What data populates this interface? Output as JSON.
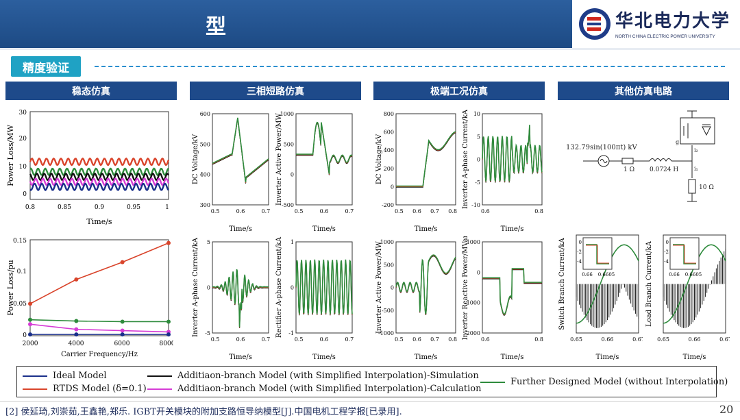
{
  "header": {
    "title": "型",
    "uni_name": "华北电力大学",
    "uni_en": "NORTH CHINA ELECTRIC POWER UNIVERSITY"
  },
  "section": {
    "tag": "精度验证"
  },
  "categories": [
    "稳态仿真",
    "三相短路仿真",
    "极端工况仿真",
    "其他仿真电路"
  ],
  "plots": {
    "ss_top": {
      "ylabel": "Power Loss/MW",
      "xlabel": "Time/s",
      "yticks": [
        "0",
        "10",
        "20",
        "30"
      ],
      "xticks": [
        "0.8",
        "0.85",
        "0.9",
        "0.95",
        "1"
      ]
    },
    "ss_bot": {
      "ylabel": "Power Loss/pu",
      "xlabel": "Carrier Frequency/Hz",
      "yticks": [
        "0",
        "0.05",
        "0.1",
        "0.15"
      ],
      "xticks": [
        "2000",
        "4000",
        "6000",
        "8000"
      ]
    },
    "sc_dcv": {
      "ylabel": "DC Voltage/kV",
      "xlabel": "Time/s",
      "yticks": [
        "300",
        "400",
        "500",
        "600"
      ],
      "xticks": [
        "0.5",
        "0.6",
        "0.7"
      ]
    },
    "sc_p": {
      "ylabel": "Inverter Active Power/MW",
      "xlabel": "Time/s",
      "yticks": [
        "-500",
        "0",
        "500",
        "1000"
      ],
      "xticks": [
        "0.5",
        "0.6",
        "0.7"
      ]
    },
    "sc_ia": {
      "ylabel": "Inverter A-phase Current/kA",
      "xlabel": "Time/s",
      "yticks": [
        "-5",
        "0",
        "5"
      ],
      "xticks": [
        "0.5",
        "0.6",
        "0.7"
      ]
    },
    "sc_ra": {
      "ylabel": "Rectifier A-phase Current/kA",
      "xlabel": "Time/s",
      "yticks": [
        "-1",
        "0",
        "1"
      ],
      "xticks": [
        "0.5",
        "0.6",
        "0.7"
      ]
    },
    "ex_dcv": {
      "ylabel": "DC Voltage/kV",
      "xlabel": "Time/s",
      "yticks": [
        "-200",
        "0",
        "200",
        "400",
        "600",
        "800"
      ],
      "xticks": [
        "0.5",
        "0.6",
        "0.7",
        "0.8"
      ]
    },
    "ex_ia": {
      "ylabel": "Inverter A-phase Current/kA",
      "xlabel": "Time/s",
      "yticks": [
        "-10",
        "-5",
        "0",
        "5",
        "10"
      ],
      "xticks": [
        "0.6",
        "0.8"
      ]
    },
    "ex_p": {
      "ylabel": "Inverter Active Power/MW",
      "xlabel": "Time/s",
      "yticks": [
        "-1000",
        "-500",
        "0",
        "500",
        "1000"
      ],
      "xticks": [
        "0.5",
        "0.6",
        "0.7",
        "0.8"
      ]
    },
    "ex_q": {
      "ylabel": "Inverter Reactive Power/MVar",
      "xlabel": "Time/s",
      "yticks": [
        "-2000",
        "-1000",
        "0",
        "1000"
      ],
      "xticks": [
        "0.6",
        "0.8"
      ]
    },
    "ot_sw": {
      "ylabel": "Switch Branch Current/kA",
      "xlabel": "Time/s",
      "xticks": [
        "0.65",
        "0.66",
        "0.67"
      ],
      "inset_yticks": [
        "0",
        "-2",
        "-4"
      ],
      "inset_xticks": [
        "0.66",
        "0.6605"
      ]
    },
    "ot_ld": {
      "ylabel": "Load Branch Current/kA",
      "xlabel": "Time/s",
      "xticks": [
        "0.65",
        "0.66",
        "0.67"
      ],
      "inset_yticks": [
        "0",
        "-2",
        "-4"
      ],
      "inset_xticks": [
        "0.66",
        "0.6605"
      ]
    }
  },
  "circuit": {
    "source": "132.79sin(100πt) kV",
    "r1": "1 Ω",
    "l1": "0.0724 H",
    "r2": "10 Ω",
    "i1": "i₁",
    "i2": "i₂",
    "g": "g"
  },
  "legend": [
    {
      "label": "Ideal Model",
      "color": "#1a2f8a"
    },
    {
      "label": "RTDS Model (δ=0.1)",
      "color": "#d9442b"
    },
    {
      "label": "Additiaon-branch Model (with Simplified Interpolation)-Simulation",
      "color": "#111111"
    },
    {
      "label": "Additiaon-branch Model (with Simplified Interpolation)-Calculation",
      "color": "#d63cd6"
    },
    {
      "label": "Further Designed Model (without Interpolation)",
      "color": "#2e8b3c"
    }
  ],
  "footer": {
    "reference": "[2] 侯延琦,刘崇茹,王鑫艳,郑乐. IGBT开关模块的附加支路恒导纳模型[J].中国电机工程学报[已录用].",
    "page": "20"
  },
  "chart_data": [
    {
      "type": "line",
      "ylabel": "Power Loss/MW",
      "xlabel": "Time/s",
      "ylim": [
        -5,
        30
      ],
      "xlim": [
        0.8,
        1
      ],
      "series": [
        {
          "values": [
            10
          ]
        },
        {
          "values": [
            6
          ]
        },
        {
          "values": [
            4
          ]
        },
        {
          "values": [
            2
          ]
        },
        {
          "values": [
            0
          ]
        }
      ]
    },
    {
      "type": "line",
      "ylabel": "Power Loss/pu",
      "xlabel": "Carrier Frequency/Hz",
      "ylim": [
        0,
        0.15
      ],
      "x": [
        2000,
        4000,
        6000,
        8000
      ],
      "series": [
        {
          "values": [
            0.05,
            0.088,
            0.115,
            0.145
          ]
        },
        {
          "values": [
            0.025,
            0.023,
            0.022,
            0.022
          ]
        },
        {
          "values": [
            0.018,
            0.01,
            0.008,
            0.006
          ]
        },
        {
          "values": [
            0.002,
            0.002,
            0.002,
            0.002
          ]
        }
      ]
    }
  ]
}
